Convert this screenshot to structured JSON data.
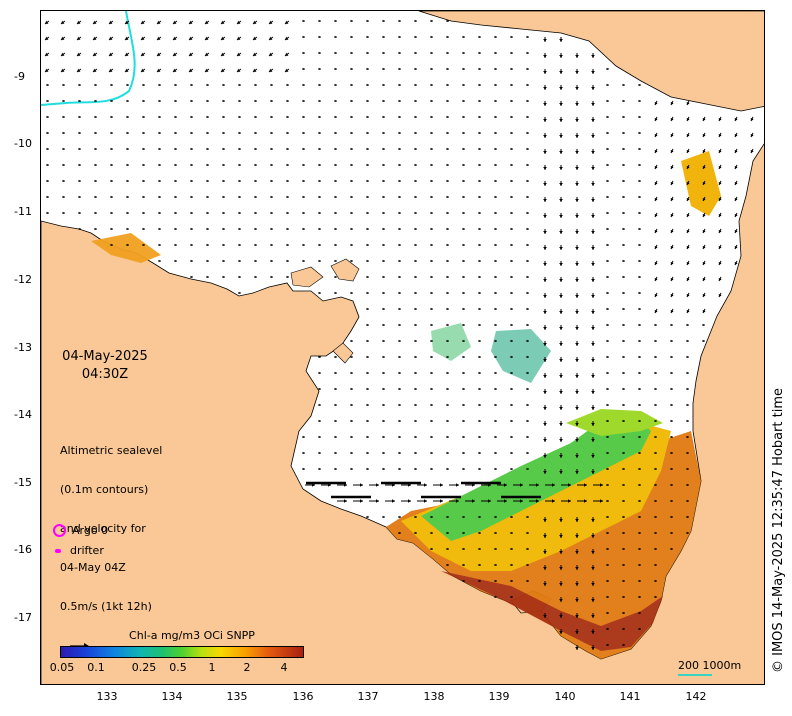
{
  "date": "04-May-2025",
  "time": "04:30Z",
  "velocity_info": [
    "Altimetric sealevel",
    "(0.1m contours)",
    "and velocity for",
    "04-May 04Z",
    "0.5m/s (1kt 12h)"
  ],
  "legend": {
    "argo": "Argo 0",
    "drifter": "drifter",
    "argo_color": "#ff00ff",
    "drifter_color": "#ff00ff"
  },
  "colorbar": {
    "title": "Chl-a mg/m3 OCi SNPP",
    "ticks": [
      "0.05",
      "0.1",
      "0.25",
      "0.5",
      "1",
      "2",
      "4"
    ]
  },
  "axes": {
    "lat_ticks": [
      "-9",
      "-10",
      "-11",
      "-12",
      "-13",
      "-14",
      "-15",
      "-16",
      "-17"
    ],
    "lon_ticks": [
      "133",
      "134",
      "135",
      "136",
      "137",
      "138",
      "139",
      "140",
      "141",
      "142"
    ]
  },
  "scale": {
    "label": "200  1000m",
    "color": "#39d3c3"
  },
  "credit": "© IMOS 14-May-2025 12:35:47 Hobart time",
  "colors": {
    "land": "#f9c896",
    "coastline": "#000000",
    "vector": "#000000",
    "bathy_contour": "#22dddd"
  }
}
